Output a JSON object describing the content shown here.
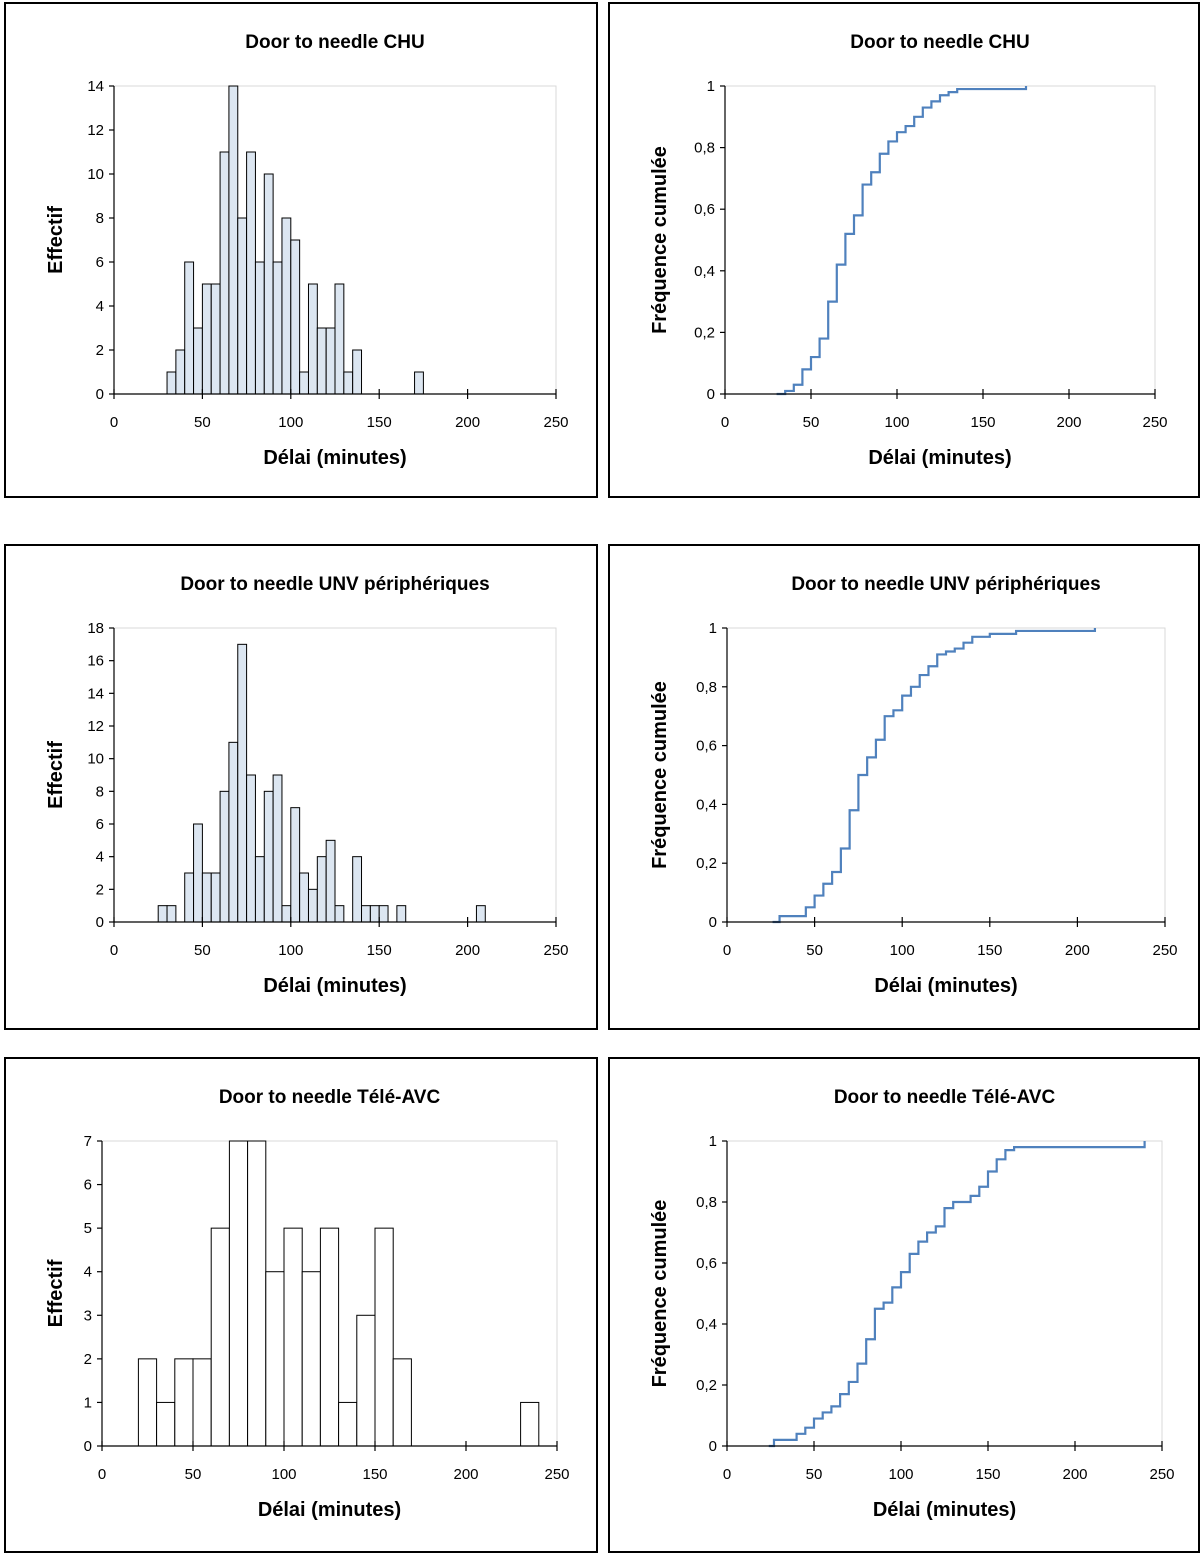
{
  "chart_data": [
    {
      "type": "bar",
      "title": "Door to needle CHU",
      "xlabel": "Délai (minutes)",
      "ylabel": "Effectif",
      "xlim": [
        0,
        250
      ],
      "ylim": [
        0,
        14
      ],
      "xticks": [
        0,
        50,
        100,
        150,
        200,
        250
      ],
      "yticks": [
        0,
        2,
        4,
        6,
        8,
        10,
        12,
        14
      ],
      "bin_width": 5,
      "bin_starts": [
        30,
        35,
        40,
        45,
        50,
        55,
        60,
        65,
        70,
        75,
        80,
        85,
        90,
        95,
        100,
        105,
        110,
        115,
        120,
        125,
        130,
        135,
        170
      ],
      "values": [
        1,
        2,
        6,
        3,
        5,
        5,
        11,
        14,
        8,
        11,
        6,
        10,
        6,
        8,
        7,
        1,
        5,
        3,
        3,
        5,
        1,
        2,
        1
      ],
      "bar_fill": "#dce6f1",
      "bar_stroke": "#000000",
      "grid": false
    },
    {
      "type": "line",
      "title": "Door to needle CHU",
      "xlabel": "Délai (minutes)",
      "ylabel": "Fréquence cumulée",
      "xlim": [
        0,
        250
      ],
      "ylim": [
        0,
        1
      ],
      "xticks": [
        0,
        50,
        100,
        150,
        200,
        250
      ],
      "yticks": [
        "0",
        "0,2",
        "0,4",
        "0,6",
        "0,8",
        "1"
      ],
      "step": true,
      "series": [
        {
          "color": "#4f81bd",
          "x": [
            30,
            35,
            40,
            45,
            50,
            55,
            60,
            65,
            70,
            75,
            80,
            85,
            90,
            95,
            100,
            105,
            110,
            115,
            120,
            125,
            130,
            135,
            140,
            175
          ],
          "y": [
            0,
            0.01,
            0.03,
            0.08,
            0.12,
            0.18,
            0.3,
            0.42,
            0.52,
            0.58,
            0.68,
            0.72,
            0.78,
            0.82,
            0.85,
            0.87,
            0.9,
            0.93,
            0.95,
            0.97,
            0.98,
            0.99,
            0.99,
            1
          ]
        }
      ],
      "grid": false
    },
    {
      "type": "bar",
      "title": "Door to needle UNV périphériques",
      "xlabel": "Délai (minutes)",
      "ylabel": "Effectif",
      "xlim": [
        0,
        250
      ],
      "ylim": [
        0,
        18
      ],
      "xticks": [
        0,
        50,
        100,
        150,
        200,
        250
      ],
      "yticks": [
        0,
        2,
        4,
        6,
        8,
        10,
        12,
        14,
        16,
        18
      ],
      "bin_width": 5,
      "bin_starts": [
        25,
        30,
        40,
        45,
        50,
        55,
        60,
        65,
        70,
        75,
        80,
        85,
        90,
        95,
        100,
        105,
        110,
        115,
        120,
        125,
        135,
        140,
        145,
        150,
        160,
        205
      ],
      "values": [
        1,
        1,
        3,
        6,
        3,
        3,
        8,
        11,
        17,
        9,
        4,
        8,
        9,
        1,
        7,
        3,
        2,
        4,
        5,
        1,
        4,
        1,
        1,
        1,
        1,
        1
      ],
      "bar_fill": "#dce6f1",
      "bar_stroke": "#000000",
      "grid": false
    },
    {
      "type": "line",
      "title": "Door to needle UNV périphériques",
      "xlabel": "Délai (minutes)",
      "ylabel": "Fréquence cumulée",
      "xlim": [
        0,
        250
      ],
      "ylim": [
        0,
        1
      ],
      "xticks": [
        0,
        50,
        100,
        150,
        200,
        250
      ],
      "yticks": [
        "0",
        "0,2",
        "0,4",
        "0,6",
        "0,8",
        "1"
      ],
      "step": true,
      "series": [
        {
          "color": "#4f81bd",
          "x": [
            26,
            30,
            42,
            45,
            50,
            55,
            60,
            65,
            70,
            75,
            80,
            85,
            90,
            95,
            100,
            105,
            110,
            115,
            120,
            125,
            130,
            135,
            140,
            150,
            165,
            210
          ],
          "y": [
            0,
            0.02,
            0.02,
            0.05,
            0.09,
            0.13,
            0.17,
            0.25,
            0.38,
            0.5,
            0.56,
            0.62,
            0.7,
            0.72,
            0.77,
            0.8,
            0.84,
            0.87,
            0.91,
            0.92,
            0.93,
            0.95,
            0.97,
            0.98,
            0.99,
            1
          ]
        }
      ],
      "grid": false
    },
    {
      "type": "bar",
      "title": "Door to needle Télé-AVC",
      "xlabel": "Délai (minutes)",
      "ylabel": "Effectif",
      "xlim": [
        0,
        250
      ],
      "ylim": [
        0,
        7
      ],
      "xticks": [
        0,
        50,
        100,
        150,
        200,
        250
      ],
      "yticks": [
        0,
        1,
        2,
        3,
        4,
        5,
        6,
        7
      ],
      "bin_width": 10,
      "bin_starts": [
        20,
        30,
        40,
        50,
        60,
        70,
        80,
        90,
        100,
        110,
        120,
        130,
        140,
        150,
        160,
        230
      ],
      "values": [
        2,
        1,
        2,
        2,
        5,
        7,
        7,
        4,
        5,
        4,
        5,
        1,
        3,
        5,
        2,
        1
      ],
      "bar_fill": "#ffffff",
      "bar_stroke": "#000000",
      "grid": false
    },
    {
      "type": "line",
      "title": "Door to needle Télé-AVC",
      "xlabel": "Délai (minutes)",
      "ylabel": "Fréquence cumulée",
      "xlim": [
        0,
        250
      ],
      "ylim": [
        0,
        1
      ],
      "xticks": [
        0,
        50,
        100,
        150,
        200,
        250
      ],
      "yticks": [
        "0",
        "0,2",
        "0,4",
        "0,6",
        "0,8",
        "1"
      ],
      "step": true,
      "series": [
        {
          "color": "#4f81bd",
          "x": [
            24,
            27,
            40,
            45,
            50,
            55,
            60,
            65,
            70,
            75,
            80,
            85,
            90,
            95,
            100,
            105,
            110,
            115,
            120,
            125,
            130,
            135,
            140,
            145,
            150,
            155,
            160,
            165,
            240
          ],
          "y": [
            0,
            0.02,
            0.04,
            0.06,
            0.09,
            0.11,
            0.13,
            0.17,
            0.21,
            0.27,
            0.35,
            0.45,
            0.47,
            0.52,
            0.57,
            0.63,
            0.67,
            0.7,
            0.72,
            0.78,
            0.8,
            0.8,
            0.82,
            0.85,
            0.9,
            0.94,
            0.97,
            0.98,
            1
          ]
        }
      ],
      "grid": false
    }
  ]
}
